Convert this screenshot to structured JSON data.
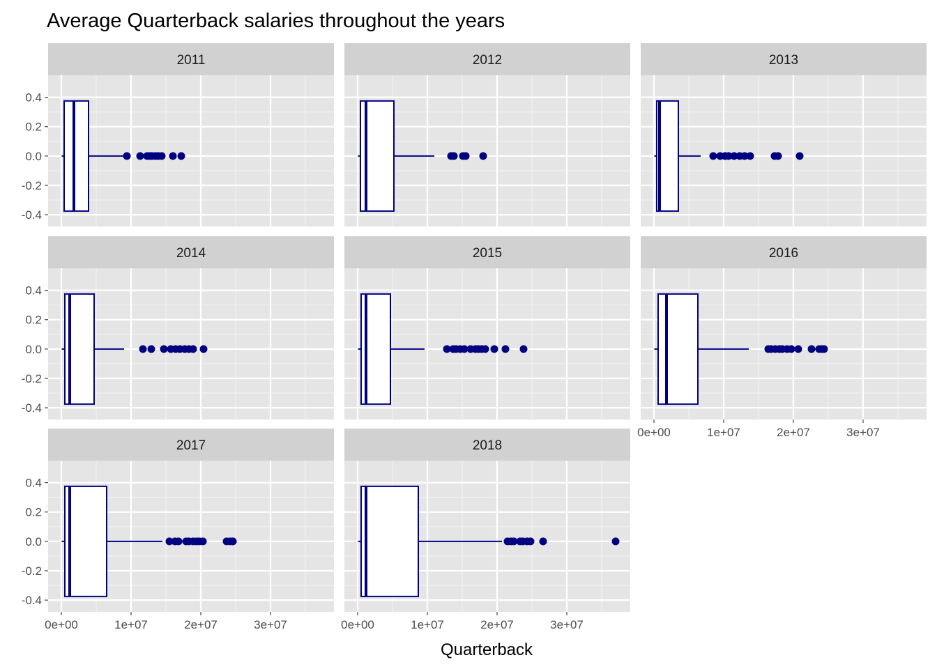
{
  "title": "Average Quarterback salaries throughout the years",
  "colors": {
    "box_stroke": "#000080",
    "box_fill": "#ffffff",
    "outlier": "#000080",
    "panel_bg": "#e5e5e5",
    "strip_bg": "#d1d1d1"
  },
  "chart_data": {
    "type": "boxplot",
    "title": "Average Quarterback salaries throughout the years",
    "xlabel": "Quarterback",
    "ylabel": "",
    "xlim": [
      0,
      38000000
    ],
    "ylim": [
      -0.4,
      0.4
    ],
    "x_ticks": [
      0,
      10000000,
      20000000,
      30000000
    ],
    "x_tick_labels": [
      "0e+00",
      "1e+07",
      "2e+07",
      "3e+07"
    ],
    "y_ticks": [
      0.4,
      0.2,
      0.0,
      -0.2,
      -0.4
    ],
    "y_tick_labels": [
      "0.4",
      "0.2",
      "0.0",
      "-0.2",
      "-0.4"
    ],
    "grid": true,
    "facets": [
      {
        "label": "2011",
        "whisker_low": 50000,
        "q1": 400000,
        "median": 1800000,
        "q3": 3900000,
        "whisker_high": 9200000,
        "outliers": [
          9400000,
          11300000,
          12300000,
          12700000,
          13000000,
          13500000,
          13900000,
          14400000,
          16000000,
          17200000
        ]
      },
      {
        "label": "2012",
        "whisker_low": 50000,
        "q1": 400000,
        "median": 1200000,
        "q3": 5200000,
        "whisker_high": 11000000,
        "outliers": [
          13400000,
          13800000,
          15100000,
          15500000,
          18000000
        ]
      },
      {
        "label": "2013",
        "whisker_low": 50000,
        "q1": 400000,
        "median": 800000,
        "q3": 3500000,
        "whisker_high": 6700000,
        "outliers": [
          8500000,
          9500000,
          10200000,
          10700000,
          11500000,
          12300000,
          13000000,
          13800000,
          17300000,
          17800000,
          20900000
        ]
      },
      {
        "label": "2014",
        "whisker_low": 50000,
        "q1": 500000,
        "median": 1200000,
        "q3": 4700000,
        "whisker_high": 9000000,
        "outliers": [
          11700000,
          12900000,
          14700000,
          15700000,
          16400000,
          17000000,
          17700000,
          18300000,
          18900000,
          20400000
        ]
      },
      {
        "label": "2015",
        "whisker_low": 50000,
        "q1": 500000,
        "median": 1200000,
        "q3": 4700000,
        "whisker_high": 9600000,
        "outliers": [
          12800000,
          13700000,
          14100000,
          14700000,
          15300000,
          16200000,
          16900000,
          17300000,
          17800000,
          18300000,
          19600000,
          21200000,
          23800000
        ]
      },
      {
        "label": "2016",
        "whisker_low": 50000,
        "q1": 600000,
        "median": 1800000,
        "q3": 6300000,
        "whisker_high": 13600000,
        "outliers": [
          16400000,
          16800000,
          17400000,
          18000000,
          18400000,
          19100000,
          19700000,
          20700000,
          22600000,
          23700000,
          24100000,
          24400000
        ]
      },
      {
        "label": "2017",
        "whisker_low": 50000,
        "q1": 500000,
        "median": 1200000,
        "q3": 6500000,
        "whisker_high": 14500000,
        "outliers": [
          15500000,
          16300000,
          16800000,
          17900000,
          18300000,
          18900000,
          19400000,
          19800000,
          20300000,
          23700000,
          24200000,
          24600000
        ]
      },
      {
        "label": "2018",
        "whisker_low": 50000,
        "q1": 500000,
        "median": 1200000,
        "q3": 8700000,
        "whisker_high": 20700000,
        "outliers": [
          21500000,
          22000000,
          22400000,
          23300000,
          23700000,
          24300000,
          24800000,
          26600000,
          37000000
        ]
      }
    ]
  }
}
